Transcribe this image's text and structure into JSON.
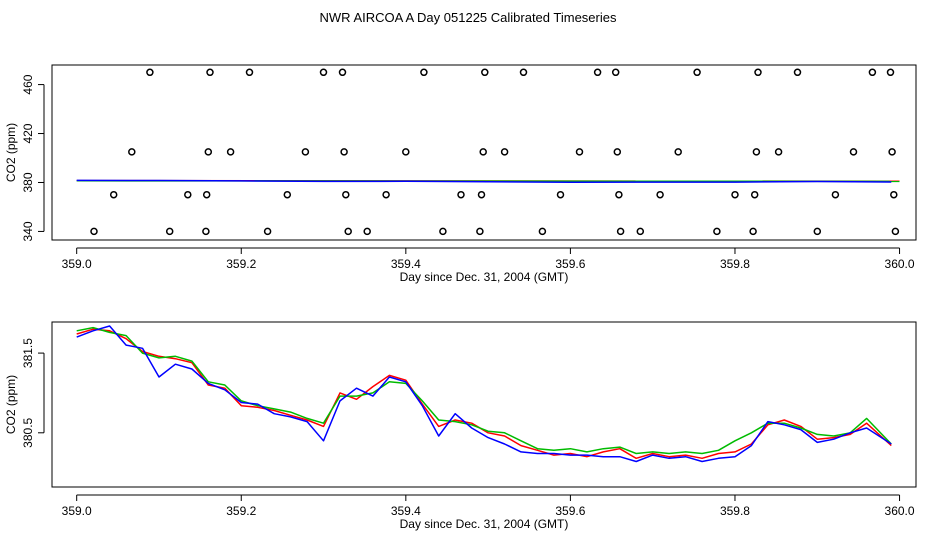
{
  "title": "NWR AIRCOA A  Day 051225  Calibrated Timeseries",
  "chart_data": [
    {
      "type": "scatter",
      "xlabel": "Day since Dec. 31, 2004 (GMT)",
      "ylabel": "CO2 (ppm)",
      "xlim": [
        358.97,
        360.02
      ],
      "ylim": [
        333,
        476
      ],
      "xticks": [
        359.0,
        359.2,
        359.4,
        359.6,
        359.8,
        360.0
      ],
      "xtick_labels": [
        "359.0",
        "359.2",
        "359.4",
        "359.6",
        "359.8",
        "360.0"
      ],
      "yticks": [
        340,
        380,
        420,
        460
      ],
      "ytick_labels": [
        "340",
        "380",
        "420",
        "460"
      ],
      "grid": false,
      "legend": "none",
      "points": {
        "x": [
          359.021,
          359.045,
          359.067,
          359.089,
          359.113,
          359.135,
          359.157,
          359.158,
          359.16,
          359.162,
          359.187,
          359.21,
          359.232,
          359.256,
          359.278,
          359.3,
          359.323,
          359.325,
          359.327,
          359.33,
          359.353,
          359.376,
          359.4,
          359.422,
          359.445,
          359.467,
          359.49,
          359.492,
          359.494,
          359.496,
          359.52,
          359.543,
          359.566,
          359.588,
          359.611,
          359.633,
          359.655,
          359.657,
          359.659,
          359.661,
          359.685,
          359.709,
          359.731,
          359.754,
          359.778,
          359.8,
          359.822,
          359.824,
          359.826,
          359.828,
          359.853,
          359.876,
          359.9,
          359.922,
          359.944,
          359.967,
          359.989,
          359.991,
          359.993,
          359.995
        ],
        "y": [
          340,
          370,
          405,
          470,
          340,
          370,
          340,
          370,
          405,
          470,
          405,
          470,
          340,
          370,
          405,
          470,
          470,
          405,
          370,
          340,
          340,
          370,
          405,
          470,
          340,
          370,
          340,
          370,
          405,
          470,
          405,
          470,
          340,
          370,
          405,
          470,
          470,
          405,
          370,
          340,
          340,
          370,
          405,
          470,
          340,
          370,
          340,
          370,
          405,
          470,
          405,
          470,
          340,
          370,
          405,
          470,
          470,
          405,
          370,
          340
        ]
      },
      "series": [
        {
          "name": "",
          "color": "#ff0000",
          "x": [
            359.0,
            360.0
          ],
          "y": [
            381.5,
            381.0
          ]
        },
        {
          "name": "",
          "color": "#00bb00",
          "x": [
            359.0,
            360.0
          ],
          "y": [
            381.4,
            380.9
          ]
        },
        {
          "name": "",
          "color": "#0000ff",
          "x": [
            359.0,
            359.1,
            359.2,
            359.3,
            359.4,
            359.5,
            359.6,
            359.7,
            359.8,
            359.9,
            359.99
          ],
          "y": [
            381.7,
            381.6,
            381.3,
            380.9,
            381.0,
            380.6,
            380.2,
            380.3,
            380.3,
            380.8,
            380.4
          ]
        }
      ]
    },
    {
      "type": "line",
      "xlabel": "Day since Dec. 31, 2004 (GMT)",
      "ylabel": "CO2 (ppm)",
      "xlim": [
        358.97,
        360.02
      ],
      "ylim": [
        379.82,
        381.89
      ],
      "xticks": [
        359.0,
        359.2,
        359.4,
        359.6,
        359.8,
        360.0
      ],
      "xtick_labels": [
        "359.0",
        "359.2",
        "359.4",
        "359.6",
        "359.8",
        "360.0"
      ],
      "yticks": [
        380.5,
        381.5
      ],
      "ytick_labels": [
        "380.5",
        "381.5"
      ],
      "grid": false,
      "legend": "none",
      "series": [
        {
          "name": "",
          "color": "#ff0000",
          "x": [
            359.0,
            359.02,
            359.04,
            359.06,
            359.08,
            359.1,
            359.12,
            359.14,
            359.16,
            359.18,
            359.2,
            359.22,
            359.24,
            359.26,
            359.28,
            359.3,
            359.32,
            359.34,
            359.36,
            359.38,
            359.4,
            359.42,
            359.44,
            359.46,
            359.48,
            359.5,
            359.52,
            359.54,
            359.56,
            359.58,
            359.6,
            359.62,
            359.64,
            359.66,
            359.68,
            359.7,
            359.72,
            359.74,
            359.76,
            359.78,
            359.8,
            359.82,
            359.84,
            359.86,
            359.88,
            359.9,
            359.92,
            359.94,
            359.96,
            359.99
          ],
          "y": [
            381.74,
            381.8,
            381.78,
            381.68,
            381.52,
            381.46,
            381.43,
            381.38,
            381.1,
            381.06,
            380.84,
            380.82,
            380.78,
            380.72,
            380.66,
            380.58,
            381.0,
            380.92,
            381.08,
            381.22,
            381.16,
            380.86,
            380.58,
            380.66,
            380.62,
            380.5,
            380.46,
            380.34,
            380.28,
            380.22,
            380.24,
            380.2,
            380.26,
            380.3,
            380.18,
            380.24,
            380.2,
            380.22,
            380.18,
            380.24,
            380.26,
            380.36,
            380.6,
            380.66,
            380.58,
            380.42,
            380.44,
            380.48,
            380.62,
            380.34
          ]
        },
        {
          "name": "",
          "color": "#00bb00",
          "x": [
            359.0,
            359.02,
            359.04,
            359.06,
            359.08,
            359.1,
            359.12,
            359.14,
            359.16,
            359.18,
            359.2,
            359.22,
            359.24,
            359.26,
            359.28,
            359.3,
            359.32,
            359.34,
            359.36,
            359.38,
            359.4,
            359.42,
            359.44,
            359.46,
            359.48,
            359.5,
            359.52,
            359.54,
            359.56,
            359.58,
            359.6,
            359.62,
            359.64,
            359.66,
            359.68,
            359.7,
            359.72,
            359.74,
            359.76,
            359.78,
            359.8,
            359.82,
            359.84,
            359.86,
            359.88,
            359.9,
            359.92,
            359.94,
            359.96,
            359.99
          ],
          "y": [
            381.78,
            381.82,
            381.76,
            381.72,
            381.5,
            381.44,
            381.46,
            381.4,
            381.14,
            381.1,
            380.9,
            380.84,
            380.8,
            380.76,
            380.68,
            380.62,
            380.96,
            380.96,
            381.0,
            381.14,
            381.12,
            380.9,
            380.66,
            380.64,
            380.6,
            380.52,
            380.5,
            380.4,
            380.3,
            380.28,
            380.3,
            380.26,
            380.3,
            380.32,
            380.24,
            380.26,
            380.24,
            380.26,
            380.24,
            380.28,
            380.4,
            380.5,
            380.62,
            380.62,
            380.56,
            380.48,
            380.46,
            380.5,
            380.68,
            380.36
          ]
        },
        {
          "name": "",
          "color": "#0000ff",
          "x": [
            359.0,
            359.02,
            359.04,
            359.06,
            359.08,
            359.1,
            359.12,
            359.14,
            359.16,
            359.18,
            359.2,
            359.22,
            359.24,
            359.26,
            359.28,
            359.3,
            359.32,
            359.34,
            359.36,
            359.38,
            359.4,
            359.42,
            359.44,
            359.46,
            359.48,
            359.5,
            359.52,
            359.54,
            359.56,
            359.58,
            359.6,
            359.62,
            359.64,
            359.66,
            359.68,
            359.7,
            359.72,
            359.74,
            359.76,
            359.78,
            359.8,
            359.82,
            359.84,
            359.86,
            359.88,
            359.9,
            359.92,
            359.94,
            359.96,
            359.99
          ],
          "y": [
            381.7,
            381.78,
            381.84,
            381.6,
            381.56,
            381.2,
            381.36,
            381.3,
            381.12,
            381.04,
            380.88,
            380.86,
            380.74,
            380.7,
            380.64,
            380.4,
            380.9,
            381.06,
            380.96,
            381.2,
            381.14,
            380.84,
            380.46,
            380.74,
            380.56,
            380.44,
            380.36,
            380.26,
            380.24,
            380.24,
            380.22,
            380.22,
            380.2,
            380.2,
            380.14,
            380.22,
            380.18,
            380.2,
            380.14,
            380.18,
            380.2,
            380.34,
            380.64,
            380.6,
            380.54,
            380.38,
            380.42,
            380.5,
            380.56,
            380.36
          ]
        }
      ]
    }
  ]
}
